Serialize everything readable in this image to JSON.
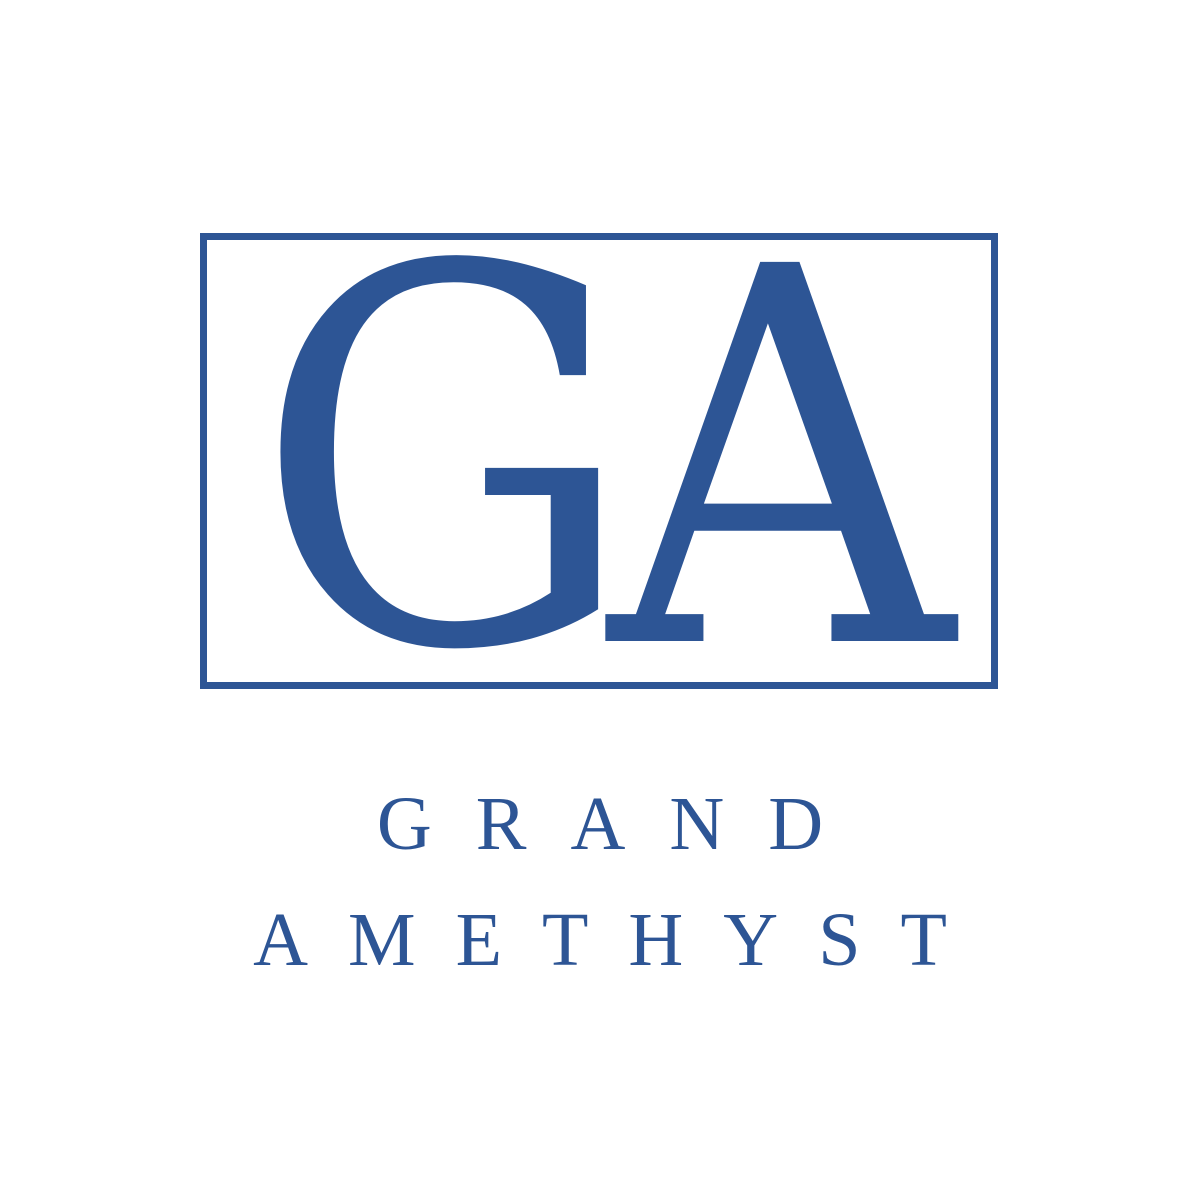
{
  "logo": {
    "monogram": "GA",
    "wordmark": {
      "line1": "GRAND",
      "line2": "AMETHYST"
    },
    "colors": {
      "brand": "#2d5595",
      "background": "#ffffff"
    }
  }
}
